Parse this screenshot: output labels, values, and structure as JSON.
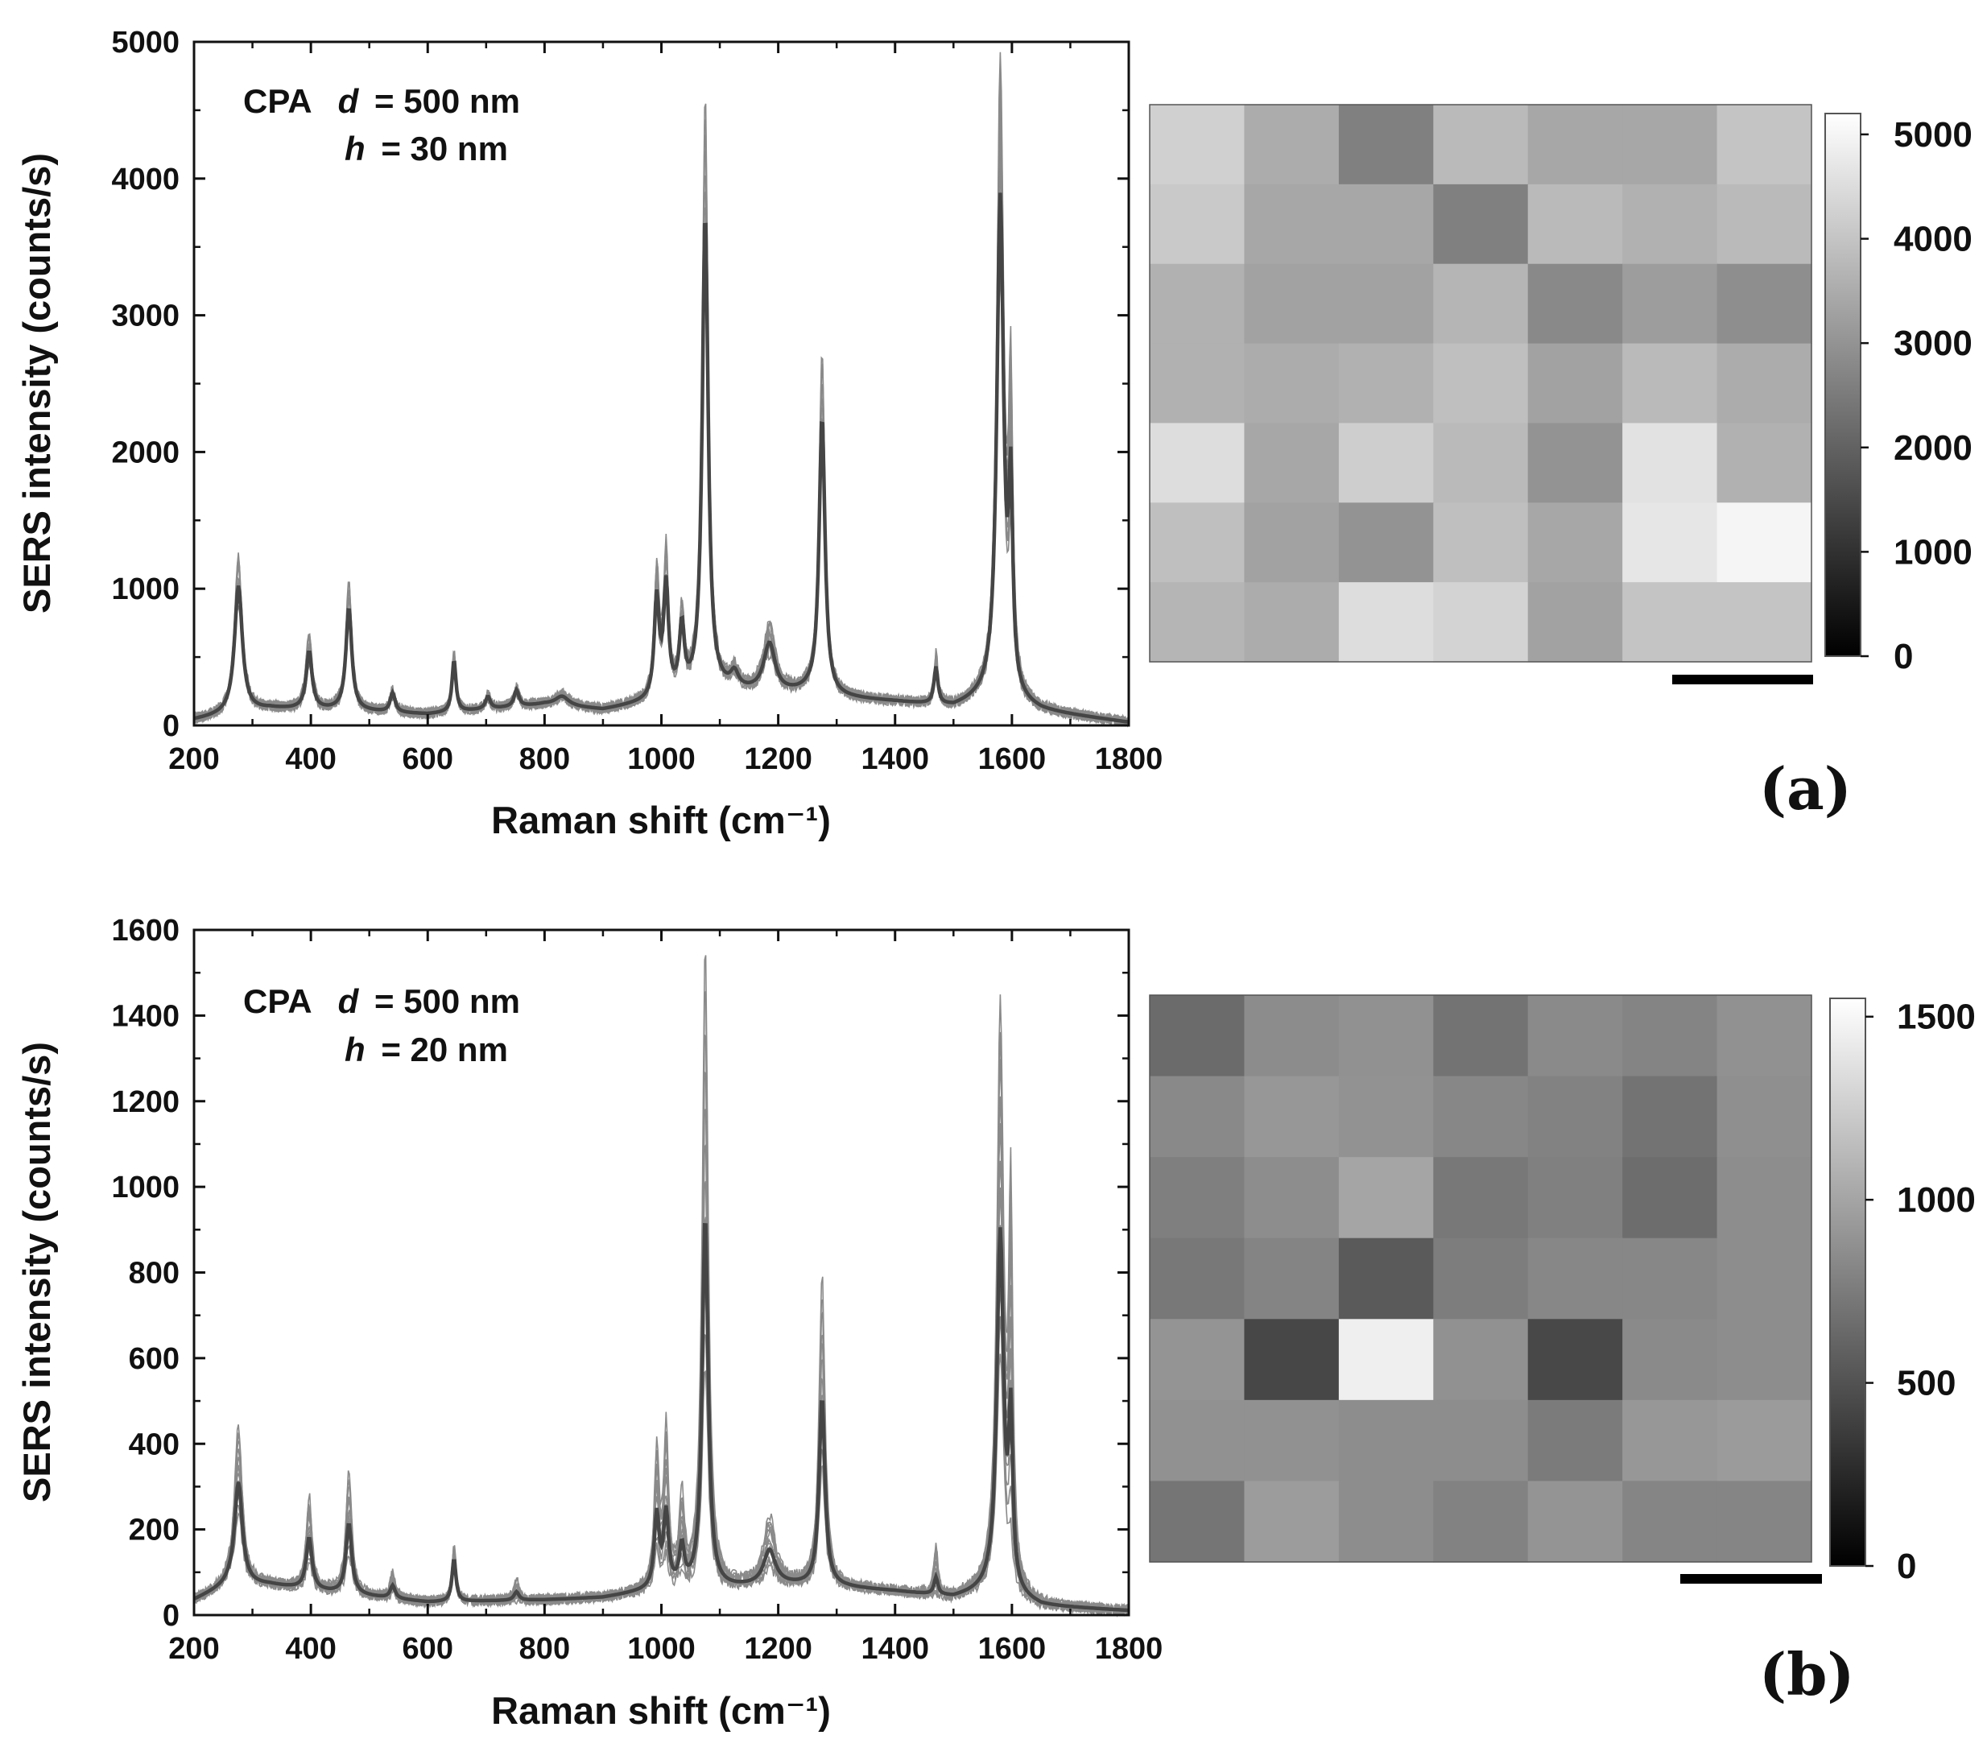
{
  "chart_data": [
    {
      "id": "a",
      "type": "line",
      "panel_label": "(a)",
      "annotation": {
        "sample": "CPA",
        "d_symbol": "d",
        "d_value": "= 500 nm",
        "h_symbol": "h",
        "h_value": "= 30 nm"
      },
      "xlabel": "Raman shift (cm⁻¹)",
      "ylabel": "SERS intensity (counts/s)",
      "xlim": [
        200,
        1800
      ],
      "ylim": [
        0,
        5000
      ],
      "xticks": [
        200,
        400,
        600,
        800,
        1000,
        1200,
        1400,
        1600,
        1800
      ],
      "yticks": [
        0,
        1000,
        2000,
        3000,
        4000,
        5000
      ],
      "baseline": [
        [
          200,
          40
        ],
        [
          260,
          80
        ],
        [
          330,
          120
        ],
        [
          450,
          110
        ],
        [
          600,
          80
        ],
        [
          800,
          150
        ],
        [
          900,
          110
        ],
        [
          1000,
          180
        ],
        [
          1100,
          250
        ],
        [
          1200,
          220
        ],
        [
          1250,
          240
        ],
        [
          1300,
          200
        ],
        [
          1400,
          170
        ],
        [
          1500,
          130
        ],
        [
          1560,
          200
        ],
        [
          1650,
          100
        ],
        [
          1800,
          20
        ]
      ],
      "peaks": [
        {
          "center": 276,
          "mean": 930,
          "max": 1140,
          "width": 8
        },
        {
          "center": 397,
          "mean": 420,
          "max": 590,
          "width": 6
        },
        {
          "center": 465,
          "mean": 750,
          "max": 960,
          "width": 6
        },
        {
          "center": 540,
          "mean": 140,
          "max": 180,
          "width": 5
        },
        {
          "center": 645,
          "mean": 380,
          "max": 450,
          "width": 4
        },
        {
          "center": 703,
          "mean": 90,
          "max": 120,
          "width": 5
        },
        {
          "center": 752,
          "mean": 120,
          "max": 150,
          "width": 5
        },
        {
          "center": 830,
          "mean": 70,
          "max": 90,
          "width": 14
        },
        {
          "center": 992,
          "mean": 720,
          "max": 950,
          "width": 5
        },
        {
          "center": 1008,
          "mean": 800,
          "max": 1040,
          "width": 5
        },
        {
          "center": 1035,
          "mean": 480,
          "max": 620,
          "width": 5
        },
        {
          "center": 1075,
          "mean": 3500,
          "max": 4420,
          "width": 6
        },
        {
          "center": 1125,
          "mean": 110,
          "max": 140,
          "width": 8
        },
        {
          "center": 1185,
          "mean": 360,
          "max": 520,
          "width": 12
        },
        {
          "center": 1275,
          "mean": 2030,
          "max": 2560,
          "width": 6
        },
        {
          "center": 1470,
          "mean": 270,
          "max": 370,
          "width": 4
        },
        {
          "center": 1580,
          "mean": 3650,
          "max": 4700,
          "width": 7
        },
        {
          "center": 1598,
          "mean": 1400,
          "max": 2200,
          "width": 4
        }
      ],
      "traces_count": 12,
      "map": {
        "rows": 7,
        "cols": 7,
        "values": [
          [
            4250,
            3500,
            2600,
            3800,
            3400,
            3400,
            4000
          ],
          [
            4100,
            3400,
            3400,
            2600,
            3800,
            3600,
            3800
          ],
          [
            3600,
            3300,
            3300,
            3700,
            2800,
            3200,
            2900
          ],
          [
            3600,
            3500,
            3600,
            3900,
            3300,
            3800,
            3500
          ],
          [
            4500,
            3400,
            4200,
            3800,
            3000,
            4600,
            3600
          ],
          [
            3900,
            3300,
            3000,
            3900,
            3400,
            4700,
            5000
          ],
          [
            3700,
            3500,
            4500,
            4300,
            3300,
            4000,
            4000
          ]
        ],
        "vmin": 0,
        "vmax": 5200,
        "colorbar_ticks": [
          0,
          1000,
          2000,
          3000,
          4000,
          5000
        ]
      }
    },
    {
      "id": "b",
      "type": "line",
      "panel_label": "(b)",
      "annotation": {
        "sample": "CPA",
        "d_symbol": "d",
        "d_value": "= 500 nm",
        "h_symbol": "h",
        "h_value": "= 20 nm"
      },
      "xlabel": "Raman shift (cm⁻¹)",
      "ylabel": "SERS intensity (counts/s)",
      "xlim": [
        200,
        1800
      ],
      "ylim": [
        0,
        1600
      ],
      "xticks": [
        200,
        400,
        600,
        800,
        1000,
        1200,
        1400,
        1600,
        1800
      ],
      "yticks": [
        0,
        200,
        400,
        600,
        800,
        1000,
        1200,
        1400,
        1600
      ],
      "baseline": [
        [
          200,
          35
        ],
        [
          260,
          70
        ],
        [
          330,
          70
        ],
        [
          450,
          50
        ],
        [
          600,
          30
        ],
        [
          800,
          35
        ],
        [
          900,
          40
        ],
        [
          1000,
          60
        ],
        [
          1100,
          60
        ],
        [
          1200,
          70
        ],
        [
          1300,
          65
        ],
        [
          1400,
          55
        ],
        [
          1500,
          40
        ],
        [
          1560,
          55
        ],
        [
          1650,
          20
        ],
        [
          1800,
          10
        ]
      ],
      "peaks": [
        {
          "center": 276,
          "mean": 240,
          "max": 380,
          "width": 8
        },
        {
          "center": 397,
          "mean": 120,
          "max": 220,
          "width": 6
        },
        {
          "center": 465,
          "mean": 165,
          "max": 290,
          "width": 6
        },
        {
          "center": 540,
          "mean": 30,
          "max": 60,
          "width": 5
        },
        {
          "center": 645,
          "mean": 100,
          "max": 140,
          "width": 4
        },
        {
          "center": 752,
          "mean": 20,
          "max": 50,
          "width": 5
        },
        {
          "center": 992,
          "mean": 170,
          "max": 310,
          "width": 5
        },
        {
          "center": 1008,
          "mean": 170,
          "max": 360,
          "width": 5
        },
        {
          "center": 1035,
          "mean": 90,
          "max": 200,
          "width": 5
        },
        {
          "center": 1075,
          "mean": 870,
          "max": 1520,
          "width": 6
        },
        {
          "center": 1185,
          "mean": 80,
          "max": 160,
          "width": 12
        },
        {
          "center": 1275,
          "mean": 440,
          "max": 740,
          "width": 6
        },
        {
          "center": 1470,
          "mean": 40,
          "max": 120,
          "width": 4
        },
        {
          "center": 1580,
          "mean": 840,
          "max": 1360,
          "width": 7
        },
        {
          "center": 1598,
          "mean": 380,
          "max": 900,
          "width": 4
        }
      ],
      "traces_count": 12,
      "map": {
        "rows": 7,
        "cols": 7,
        "values": [
          [
            650,
            850,
            880,
            700,
            840,
            800,
            880
          ],
          [
            830,
            920,
            890,
            820,
            790,
            700,
            870
          ],
          [
            770,
            860,
            1000,
            730,
            780,
            660,
            860
          ],
          [
            730,
            800,
            550,
            760,
            820,
            820,
            860
          ],
          [
            900,
            430,
            1450,
            880,
            440,
            840,
            860
          ],
          [
            880,
            880,
            860,
            860,
            750,
            920,
            940
          ],
          [
            710,
            950,
            860,
            790,
            900,
            810,
            810
          ]
        ],
        "vmin": 0,
        "vmax": 1550,
        "colorbar_ticks": [
          0,
          500,
          1000,
          1500
        ]
      }
    }
  ]
}
